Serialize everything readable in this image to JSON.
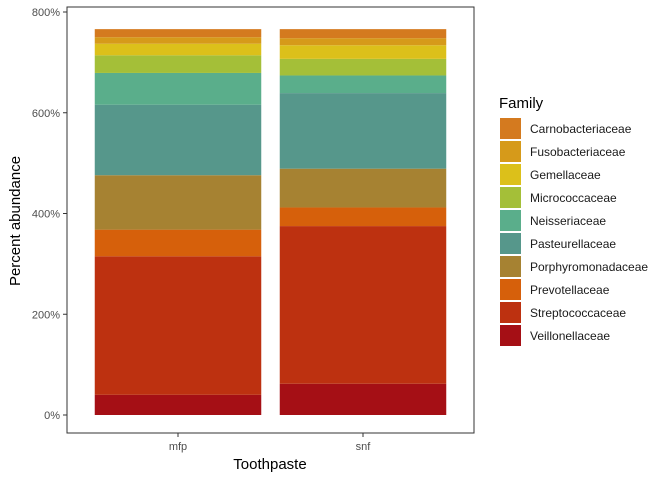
{
  "chart_data": {
    "type": "bar",
    "stacked": true,
    "xlabel": "Toothpaste",
    "ylabel": "Percent abundance",
    "categories": [
      "mfp",
      "snf"
    ],
    "ylim": [
      0,
      800
    ],
    "y_ticks": [
      0,
      200,
      400,
      600,
      800
    ],
    "y_tick_labels": [
      "0%",
      "200%",
      "400%",
      "600%",
      "800%"
    ],
    "legend_title": "Family",
    "legend_position": "right",
    "grid": false,
    "series": [
      {
        "name": "Veillonellaceae",
        "color": "#A50F15",
        "values": [
          40,
          62
        ]
      },
      {
        "name": "Streptococcaceae",
        "color": "#BD3110",
        "values": [
          275,
          313
        ]
      },
      {
        "name": "Prevotellaceae",
        "color": "#D6600B",
        "values": [
          53,
          37
        ]
      },
      {
        "name": "Porphyromonadaceae",
        "color": "#A68232",
        "values": [
          108,
          77
        ]
      },
      {
        "name": "Pasteurellaceae",
        "color": "#56978B",
        "values": [
          140,
          150
        ]
      },
      {
        "name": "Neisseriaceae",
        "color": "#5AAE8B",
        "values": [
          63,
          35
        ]
      },
      {
        "name": "Micrococcaceae",
        "color": "#A4BF38",
        "values": [
          35,
          33
        ]
      },
      {
        "name": "Gemellaceae",
        "color": "#DCC01A",
        "values": [
          23,
          27
        ]
      },
      {
        "name": "Fusobacteriaceae",
        "color": "#D69A1A",
        "values": [
          13,
          14
        ]
      },
      {
        "name": "Carnobacteriaceae",
        "color": "#D47A1F",
        "values": [
          16,
          18
        ]
      }
    ]
  }
}
